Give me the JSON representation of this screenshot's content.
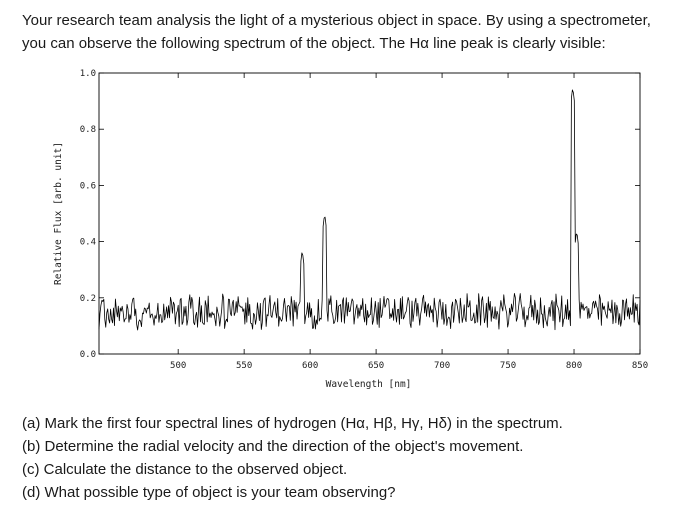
{
  "intro": {
    "line1": "Your research team analysis the light of a mysterious object in space.  By using a spectrometer,",
    "line2": "you can observe the following spectrum of the object. The Hα line peak is clearly visible:"
  },
  "questions": [
    "(a) Mark the first four spectral lines of hydrogen (Hα, Hβ, Hγ, Hδ) in the spectrum.",
    "(b) Determine the radial velocity and the direction of the object's movement.",
    "(c) Calculate the distance to the observed object.",
    "(d) What possible type of object is your team observing?"
  ],
  "chart_data": {
    "type": "line",
    "xlabel": "Wavelength [nm]",
    "ylabel": "Relative Flux [arb. unit]",
    "xlim": [
      440,
      850
    ],
    "ylim": [
      0.0,
      1.0
    ],
    "xticks": [
      500,
      550,
      600,
      650,
      700,
      750,
      800,
      850
    ],
    "yticks": [
      "0.0",
      "0.2",
      "0.4",
      "0.6",
      "0.8",
      "1.0"
    ],
    "grid": false,
    "color": "#000000",
    "baseline": 0.15,
    "noise_amplitude": 0.07,
    "samples": 560,
    "lines": [
      {
        "x": 594,
        "y": 0.37
      },
      {
        "x": 611,
        "y": 0.5
      },
      {
        "x": 799,
        "y": 0.95
      },
      {
        "x": 802,
        "y": 0.44
      }
    ]
  }
}
